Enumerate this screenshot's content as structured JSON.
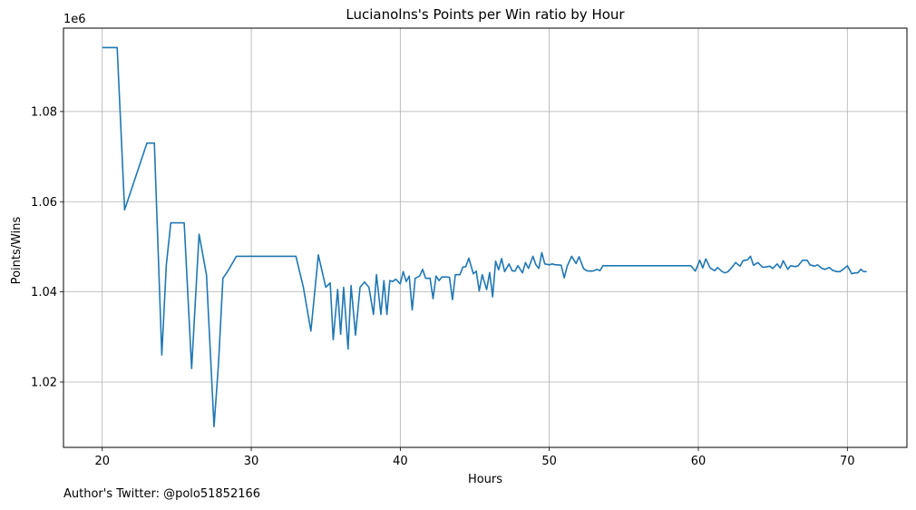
{
  "chart_data": {
    "type": "line",
    "title": "Lucianolns's Points per Win ratio by Hour",
    "xlabel": "Hours",
    "ylabel": "Points/Wins",
    "y_offset_label": "1e6",
    "xlim": [
      17.4,
      74.0
    ],
    "ylim": [
      1005500,
      1098500
    ],
    "x_ticks": [
      20,
      30,
      40,
      50,
      60,
      70
    ],
    "x_tick_labels": [
      "20",
      "30",
      "40",
      "50",
      "60",
      "70"
    ],
    "y_ticks": [
      1020000,
      1040000,
      1060000,
      1080000
    ],
    "y_tick_labels": [
      "1.02",
      "1.04",
      "1.06",
      "1.08"
    ],
    "grid": true,
    "color": "#1f77b4",
    "series": [
      {
        "x": [
          20.0,
          21.0,
          21.5,
          23.0,
          23.5,
          24.0,
          24.3,
          24.6,
          25.5,
          26.0,
          26.5,
          27.0,
          27.5,
          27.8,
          28.1,
          28.5,
          29.0,
          33.0,
          33.5,
          34.0,
          34.5,
          35.0,
          35.3,
          35.5,
          35.8,
          36.0,
          36.2,
          36.5,
          36.7,
          37.0,
          37.3,
          37.6,
          37.9,
          38.2,
          38.4,
          38.7,
          38.9,
          39.1,
          39.3,
          39.5,
          39.7,
          40.0,
          40.2,
          40.4,
          40.6,
          40.8,
          41.0,
          41.3,
          41.5,
          41.7,
          42.0,
          42.2,
          42.4,
          42.6,
          42.8,
          43.1,
          43.3,
          43.5,
          43.7,
          44.0,
          44.2,
          44.4,
          44.6,
          44.9,
          45.1,
          45.3,
          45.5,
          45.8,
          46.0,
          46.2,
          46.4,
          46.6,
          46.8,
          47.0,
          47.3,
          47.5,
          47.7,
          47.9,
          48.2,
          48.4,
          48.6,
          48.9,
          49.1,
          49.3,
          49.5,
          49.7,
          50.0,
          50.2,
          50.4,
          50.6,
          50.8,
          51.0,
          51.2,
          51.5,
          51.8,
          52.0,
          52.3,
          52.5,
          52.8,
          53.0,
          53.2,
          53.4,
          53.6,
          53.9,
          54.1,
          54.3,
          54.6,
          54.9,
          55.1,
          55.3,
          59.5,
          59.8,
          60.1,
          60.3,
          60.5,
          60.8,
          61.1,
          61.3,
          61.6,
          61.8,
          62.0,
          62.3,
          62.5,
          62.8,
          63.0,
          63.3,
          63.5,
          63.7,
          64.0,
          64.3,
          64.5,
          64.8,
          65.0,
          65.3,
          65.5,
          65.7,
          66.0,
          66.2,
          66.5,
          66.7,
          67.0,
          67.3,
          67.5,
          67.8,
          68.0,
          68.3,
          68.5,
          68.8,
          69.0,
          69.3,
          69.5,
          69.8,
          70.0,
          70.3,
          70.5,
          70.7,
          70.9,
          71.1,
          71.3
        ],
        "y": [
          1094200,
          1094200,
          1058200,
          1073000,
          1073000,
          1026000,
          1046000,
          1055300,
          1055300,
          1023000,
          1052800,
          1043700,
          1010100,
          1024000,
          1043000,
          1045000,
          1047900,
          1047900,
          1041000,
          1031300,
          1048200,
          1041000,
          1042000,
          1029400,
          1040500,
          1030600,
          1041000,
          1027300,
          1041400,
          1030400,
          1041000,
          1042200,
          1041000,
          1035000,
          1043800,
          1035000,
          1042500,
          1035000,
          1042500,
          1042300,
          1042800,
          1041800,
          1044500,
          1042300,
          1043500,
          1036000,
          1043000,
          1043500,
          1045000,
          1043000,
          1043000,
          1038500,
          1043500,
          1042500,
          1043300,
          1043300,
          1043200,
          1038300,
          1043800,
          1043800,
          1045500,
          1045600,
          1047500,
          1044000,
          1044600,
          1040200,
          1043800,
          1040500,
          1044300,
          1038900,
          1046800,
          1044900,
          1047400,
          1044500,
          1046200,
          1044700,
          1044600,
          1045800,
          1044200,
          1046500,
          1045200,
          1047900,
          1046000,
          1045200,
          1048700,
          1046200,
          1046000,
          1046200,
          1046000,
          1046000,
          1045900,
          1043100,
          1045700,
          1047900,
          1046300,
          1047800,
          1045200,
          1044700,
          1044600,
          1044700,
          1045000,
          1044700,
          1045800,
          1045800,
          1045800,
          1045800,
          1045800,
          1045800,
          1045800,
          1045800,
          1045800,
          1044600,
          1047000,
          1045300,
          1047300,
          1045300,
          1044700,
          1045400,
          1044500,
          1044200,
          1044500,
          1045600,
          1046500,
          1045700,
          1046900,
          1047100,
          1047900,
          1045900,
          1046500,
          1045500,
          1045500,
          1045700,
          1045200,
          1046200,
          1045300,
          1046900,
          1045000,
          1045800,
          1045600,
          1045800,
          1047000,
          1047000,
          1046000,
          1045700,
          1046000,
          1045200,
          1045000,
          1045400,
          1044800,
          1044500,
          1044500,
          1045200,
          1045800,
          1044000,
          1044200,
          1044200,
          1045000,
          1044500,
          1044500
        ]
      }
    ]
  },
  "footer": {
    "credit": "Author's Twitter: @polo51852166"
  }
}
